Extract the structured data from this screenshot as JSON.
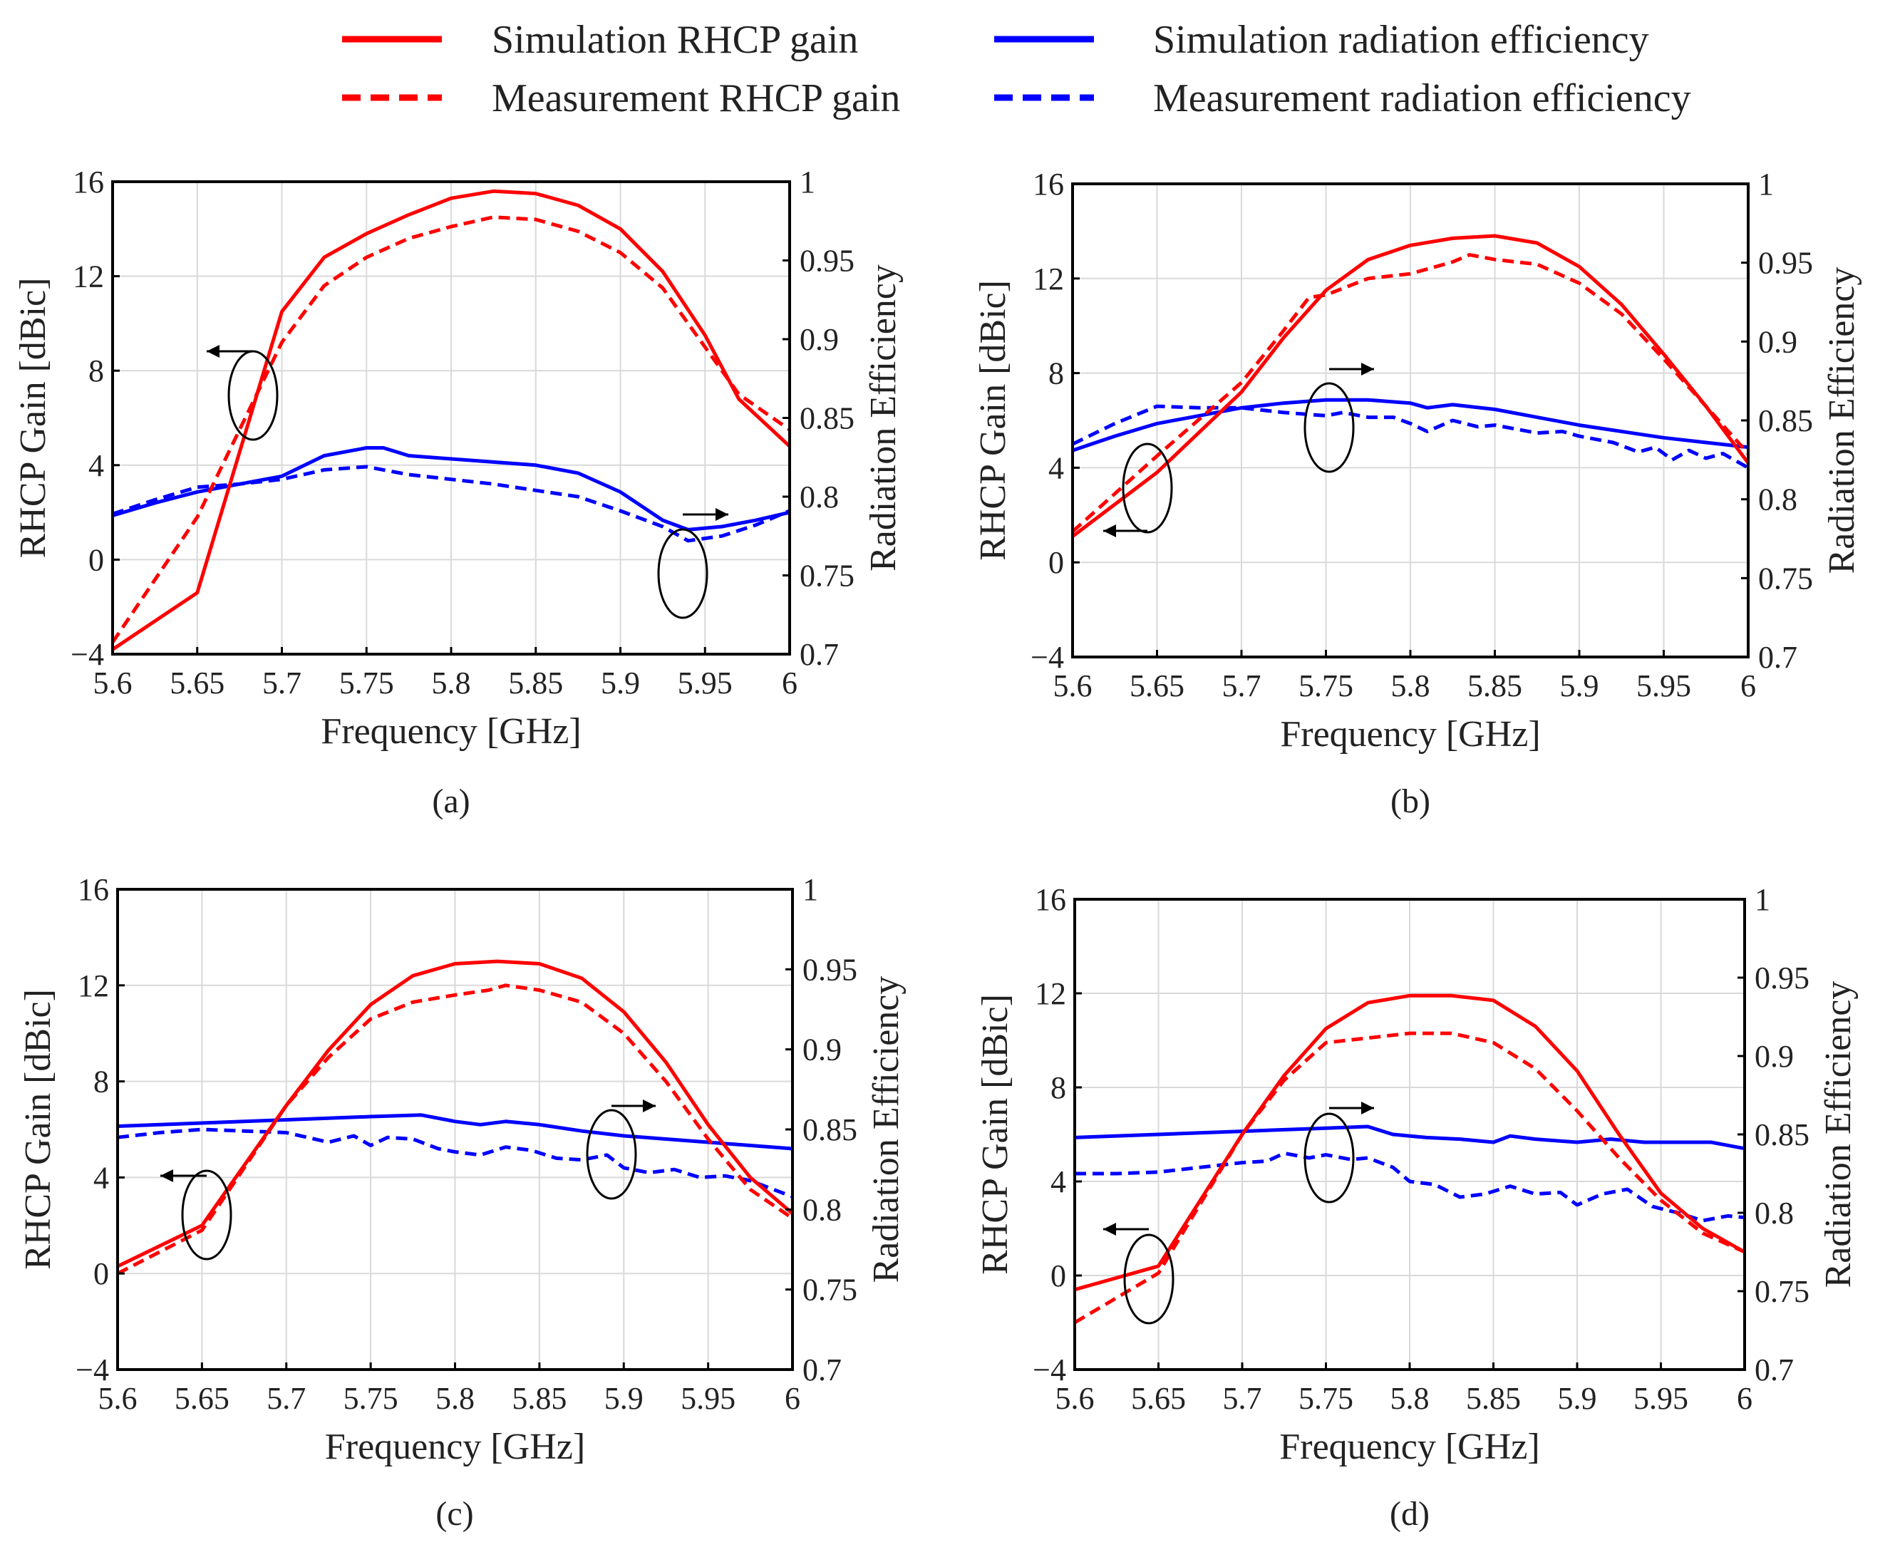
{
  "legend": [
    {
      "label": "Simulation RHCP gain",
      "color": "#ff0000",
      "dashed": false
    },
    {
      "label": "Simulation radiation efficiency",
      "color": "#0000ff",
      "dashed": false
    },
    {
      "label": "Measurement RHCP gain",
      "color": "#ff0000",
      "dashed": true
    },
    {
      "label": "Measurement radiation efficiency",
      "color": "#0000ff",
      "dashed": true
    }
  ],
  "colors": {
    "gain": "#ff0000",
    "efficiency": "#0000ff",
    "grid": "#d9d9d9",
    "axis": "#000000"
  },
  "chart_data": [
    {
      "type": "line",
      "caption": "(a)",
      "xlabel": "Frequency [GHz]",
      "ylabel_left": "RHCP Gain [dBic]",
      "ylabel_right": "Radiation Efficiency",
      "xlim": [
        5.6,
        6.0
      ],
      "xticks": [
        "5.6",
        "5.65",
        "5.7",
        "5.75",
        "5.8",
        "5.85",
        "5.9",
        "5.95",
        "6"
      ],
      "ylim_left": [
        -4,
        16
      ],
      "yticks_left": [
        "−4",
        "0",
        "4",
        "8",
        "12",
        "16"
      ],
      "ylim_right": [
        0.7,
        1.0
      ],
      "yticks_right": [
        "0.7",
        "0.75",
        "0.8",
        "0.85",
        "0.9",
        "0.95",
        "1"
      ],
      "series": [
        {
          "name": "Simulation RHCP gain",
          "axis": "left",
          "x": [
            5.6,
            5.65,
            5.7,
            5.725,
            5.75,
            5.775,
            5.8,
            5.825,
            5.85,
            5.875,
            5.9,
            5.925,
            5.95,
            5.97,
            6.0
          ],
          "y": [
            -3.8,
            -1.4,
            10.5,
            12.8,
            13.8,
            14.6,
            15.3,
            15.6,
            15.5,
            15.0,
            14.0,
            12.2,
            9.5,
            6.8,
            4.8
          ]
        },
        {
          "name": "Measurement RHCP gain",
          "axis": "left",
          "x": [
            5.6,
            5.65,
            5.7,
            5.725,
            5.75,
            5.775,
            5.8,
            5.825,
            5.85,
            5.875,
            5.9,
            5.925,
            5.95,
            5.97,
            6.0
          ],
          "y": [
            -3.5,
            1.8,
            9.2,
            11.6,
            12.8,
            13.6,
            14.1,
            14.5,
            14.4,
            13.9,
            13.0,
            11.5,
            9.0,
            7.0,
            5.5
          ]
        },
        {
          "name": "Simulation radiation efficiency",
          "axis": "right",
          "x": [
            5.6,
            5.625,
            5.65,
            5.675,
            5.7,
            5.725,
            5.75,
            5.76,
            5.775,
            5.8,
            5.825,
            5.85,
            5.875,
            5.9,
            5.925,
            5.94,
            5.96,
            5.98,
            6.0
          ],
          "y": [
            0.788,
            0.796,
            0.803,
            0.808,
            0.813,
            0.826,
            0.831,
            0.831,
            0.826,
            0.824,
            0.822,
            0.82,
            0.815,
            0.803,
            0.785,
            0.779,
            0.781,
            0.785,
            0.79
          ]
        },
        {
          "name": "Measurement radiation efficiency",
          "axis": "right",
          "x": [
            5.6,
            5.625,
            5.65,
            5.675,
            5.7,
            5.725,
            5.75,
            5.775,
            5.8,
            5.825,
            5.85,
            5.875,
            5.9,
            5.925,
            5.94,
            5.96,
            5.98,
            6.0
          ],
          "y": [
            0.789,
            0.798,
            0.806,
            0.808,
            0.811,
            0.817,
            0.819,
            0.814,
            0.811,
            0.808,
            0.804,
            0.8,
            0.791,
            0.781,
            0.772,
            0.775,
            0.782,
            0.791
          ]
        }
      ]
    },
    {
      "type": "line",
      "caption": "(b)",
      "xlabel": "Frequency [GHz]",
      "ylabel_left": "RHCP Gain [dBic]",
      "ylabel_right": "Radiation Efficiency",
      "xlim": [
        5.6,
        6.0
      ],
      "xticks": [
        "5.6",
        "5.65",
        "5.7",
        "5.75",
        "5.8",
        "5.85",
        "5.9",
        "5.95",
        "6"
      ],
      "ylim_left": [
        -4,
        16
      ],
      "yticks_left": [
        "−4",
        "0",
        "4",
        "8",
        "12",
        "16"
      ],
      "ylim_right": [
        0.7,
        1.0
      ],
      "yticks_right": [
        "0.7",
        "0.75",
        "0.8",
        "0.85",
        "0.9",
        "0.95",
        "1"
      ],
      "series": [
        {
          "name": "Simulation RHCP gain",
          "axis": "left",
          "x": [
            5.6,
            5.65,
            5.7,
            5.725,
            5.75,
            5.775,
            5.8,
            5.825,
            5.85,
            5.875,
            5.9,
            5.925,
            5.95,
            5.975,
            6.0
          ],
          "y": [
            1.1,
            3.8,
            7.2,
            9.5,
            11.5,
            12.8,
            13.4,
            13.7,
            13.8,
            13.5,
            12.5,
            10.9,
            8.8,
            6.6,
            4.2
          ]
        },
        {
          "name": "Measurement RHCP gain",
          "axis": "left",
          "x": [
            5.6,
            5.65,
            5.7,
            5.725,
            5.74,
            5.75,
            5.775,
            5.8,
            5.825,
            5.835,
            5.85,
            5.875,
            5.9,
            5.925,
            5.95,
            5.975,
            6.0
          ],
          "y": [
            1.3,
            4.5,
            7.6,
            9.8,
            11.2,
            11.3,
            12.0,
            12.2,
            12.7,
            13.0,
            12.8,
            12.6,
            11.8,
            10.5,
            8.6,
            6.6,
            4.6
          ]
        },
        {
          "name": "Simulation radiation efficiency",
          "axis": "right",
          "x": [
            5.6,
            5.625,
            5.65,
            5.675,
            5.7,
            5.725,
            5.75,
            5.775,
            5.8,
            5.81,
            5.825,
            5.85,
            5.875,
            5.9,
            5.925,
            5.95,
            5.975,
            6.0
          ],
          "y": [
            0.831,
            0.84,
            0.848,
            0.853,
            0.858,
            0.861,
            0.863,
            0.863,
            0.861,
            0.858,
            0.86,
            0.857,
            0.852,
            0.847,
            0.843,
            0.839,
            0.836,
            0.833
          ]
        },
        {
          "name": "Measurement radiation efficiency",
          "axis": "right",
          "x": [
            5.6,
            5.625,
            5.65,
            5.675,
            5.7,
            5.725,
            5.75,
            5.76,
            5.775,
            5.79,
            5.8,
            5.81,
            5.825,
            5.84,
            5.85,
            5.875,
            5.89,
            5.9,
            5.92,
            5.935,
            5.945,
            5.955,
            5.965,
            5.975,
            5.985,
            6.0
          ],
          "y": [
            0.835,
            0.848,
            0.859,
            0.858,
            0.858,
            0.855,
            0.853,
            0.855,
            0.852,
            0.852,
            0.848,
            0.843,
            0.85,
            0.846,
            0.847,
            0.842,
            0.843,
            0.84,
            0.836,
            0.83,
            0.833,
            0.825,
            0.831,
            0.826,
            0.829,
            0.82
          ]
        }
      ]
    },
    {
      "type": "line",
      "caption": "(c)",
      "xlabel": "Frequency [GHz]",
      "ylabel_left": "RHCP Gain [dBic]",
      "ylabel_right": "Radiation Efficiency",
      "xlim": [
        5.6,
        6.0
      ],
      "xticks": [
        "5.6",
        "5.65",
        "5.7",
        "5.75",
        "5.8",
        "5.85",
        "5.9",
        "5.95",
        "6"
      ],
      "ylim_left": [
        -4,
        16
      ],
      "yticks_left": [
        "−4",
        "0",
        "4",
        "8",
        "12",
        "16"
      ],
      "ylim_right": [
        0.7,
        1.0
      ],
      "yticks_right": [
        "0.7",
        "0.75",
        "0.8",
        "0.85",
        "0.9",
        "0.95",
        "1"
      ],
      "series": [
        {
          "name": "Simulation RHCP gain",
          "axis": "left",
          "x": [
            5.6,
            5.65,
            5.7,
            5.725,
            5.75,
            5.775,
            5.8,
            5.825,
            5.85,
            5.875,
            5.9,
            5.925,
            5.95,
            5.975,
            6.0
          ],
          "y": [
            0.3,
            2.0,
            7.0,
            9.3,
            11.2,
            12.4,
            12.9,
            13.0,
            12.9,
            12.3,
            10.9,
            8.8,
            6.2,
            4.0,
            2.5
          ]
        },
        {
          "name": "Measurement RHCP gain",
          "axis": "left",
          "x": [
            5.6,
            5.65,
            5.7,
            5.725,
            5.75,
            5.775,
            5.8,
            5.82,
            5.83,
            5.85,
            5.875,
            5.9,
            5.925,
            5.95,
            5.975,
            6.0
          ],
          "y": [
            0.0,
            1.8,
            7.0,
            9.0,
            10.6,
            11.3,
            11.6,
            11.8,
            12.0,
            11.8,
            11.3,
            10.0,
            8.0,
            5.6,
            3.5,
            2.3
          ]
        },
        {
          "name": "Simulation radiation efficiency",
          "axis": "right",
          "x": [
            5.6,
            5.65,
            5.7,
            5.75,
            5.78,
            5.8,
            5.815,
            5.83,
            5.85,
            5.875,
            5.9,
            5.925,
            5.95,
            5.975,
            6.0
          ],
          "y": [
            0.852,
            0.854,
            0.856,
            0.858,
            0.859,
            0.855,
            0.853,
            0.855,
            0.853,
            0.849,
            0.846,
            0.844,
            0.842,
            0.84,
            0.838
          ]
        },
        {
          "name": "Measurement radiation efficiency",
          "axis": "right",
          "x": [
            5.6,
            5.625,
            5.65,
            5.675,
            5.7,
            5.725,
            5.74,
            5.75,
            5.76,
            5.775,
            5.79,
            5.8,
            5.815,
            5.83,
            5.845,
            5.86,
            5.875,
            5.89,
            5.9,
            5.915,
            5.93,
            5.945,
            5.96,
            5.975,
            5.99,
            6.0
          ],
          "y": [
            0.845,
            0.848,
            0.85,
            0.849,
            0.848,
            0.842,
            0.846,
            0.84,
            0.845,
            0.844,
            0.838,
            0.836,
            0.834,
            0.839,
            0.837,
            0.832,
            0.831,
            0.834,
            0.826,
            0.823,
            0.825,
            0.82,
            0.821,
            0.818,
            0.812,
            0.808
          ]
        }
      ]
    },
    {
      "type": "line",
      "caption": "(d)",
      "xlabel": "Frequency [GHz]",
      "ylabel_left": "RHCP Gain [dBic]",
      "ylabel_right": "Radiation Efficiency",
      "xlim": [
        5.6,
        6.0
      ],
      "xticks": [
        "5.6",
        "5.65",
        "5.7",
        "5.75",
        "5.8",
        "5.85",
        "5.9",
        "5.95",
        "6"
      ],
      "ylim_left": [
        -4,
        16
      ],
      "yticks_left": [
        "−4",
        "0",
        "4",
        "8",
        "12",
        "16"
      ],
      "ylim_right": [
        0.7,
        1.0
      ],
      "yticks_right": [
        "0.7",
        "0.75",
        "0.8",
        "0.85",
        "0.9",
        "0.95",
        "1"
      ],
      "series": [
        {
          "name": "Simulation RHCP gain",
          "axis": "left",
          "x": [
            5.6,
            5.65,
            5.7,
            5.725,
            5.75,
            5.775,
            5.8,
            5.825,
            5.85,
            5.875,
            5.9,
            5.925,
            5.95,
            5.975,
            6.0
          ],
          "y": [
            -0.6,
            0.4,
            6.0,
            8.5,
            10.5,
            11.6,
            11.9,
            11.9,
            11.7,
            10.6,
            8.7,
            6.0,
            3.5,
            2.0,
            1.0
          ]
        },
        {
          "name": "Measurement RHCP gain",
          "axis": "left",
          "x": [
            5.6,
            5.65,
            5.7,
            5.725,
            5.75,
            5.775,
            5.8,
            5.825,
            5.85,
            5.875,
            5.9,
            5.925,
            5.95,
            5.975,
            6.0
          ],
          "y": [
            -2.0,
            0.1,
            6.0,
            8.3,
            9.9,
            10.1,
            10.3,
            10.3,
            9.9,
            8.8,
            7.0,
            5.0,
            3.2,
            1.8,
            1.0
          ]
        },
        {
          "name": "Simulation radiation efficiency",
          "axis": "right",
          "x": [
            5.6,
            5.65,
            5.7,
            5.75,
            5.775,
            5.79,
            5.81,
            5.83,
            5.85,
            5.86,
            5.875,
            5.9,
            5.92,
            5.94,
            5.96,
            5.98,
            6.0
          ],
          "y": [
            0.848,
            0.85,
            0.852,
            0.854,
            0.855,
            0.85,
            0.848,
            0.847,
            0.845,
            0.849,
            0.847,
            0.845,
            0.847,
            0.845,
            0.845,
            0.845,
            0.841
          ]
        },
        {
          "name": "Measurement radiation efficiency",
          "axis": "right",
          "x": [
            5.6,
            5.625,
            5.65,
            5.675,
            5.7,
            5.715,
            5.725,
            5.74,
            5.75,
            5.765,
            5.775,
            5.79,
            5.8,
            5.815,
            5.83,
            5.845,
            5.86,
            5.875,
            5.89,
            5.9,
            5.915,
            5.93,
            5.945,
            5.96,
            5.975,
            5.99,
            6.0
          ],
          "y": [
            0.825,
            0.825,
            0.826,
            0.829,
            0.832,
            0.833,
            0.838,
            0.835,
            0.837,
            0.834,
            0.835,
            0.829,
            0.82,
            0.818,
            0.81,
            0.812,
            0.817,
            0.812,
            0.813,
            0.805,
            0.812,
            0.815,
            0.804,
            0.8,
            0.795,
            0.798,
            0.797
          ]
        }
      ]
    }
  ]
}
